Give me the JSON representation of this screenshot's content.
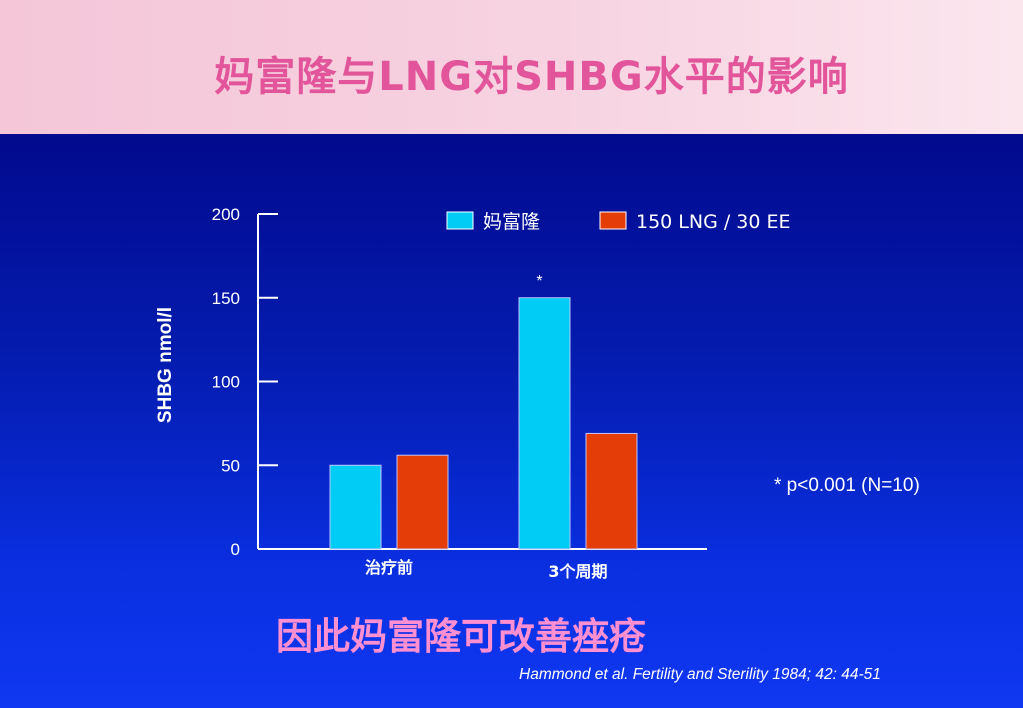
{
  "header": {
    "title": "妈富隆与LNG对SHBG水平的影响"
  },
  "chart_data": {
    "type": "bar",
    "ylabel": "SHBG nmol/l",
    "ylim": [
      0,
      200
    ],
    "yticks": [
      "0",
      "50",
      "100",
      "150",
      "200"
    ],
    "categories": [
      "治疗前",
      "3个周期"
    ],
    "series": [
      {
        "name": "妈富隆",
        "color": "#00ccf5",
        "values": [
          50,
          150
        ]
      },
      {
        "name": "150 LNG / 30  EE",
        "color": "#e53d07",
        "values": [
          56,
          69
        ]
      }
    ],
    "annotations": [
      {
        "text": "*",
        "category": "3个周期",
        "series": "妈富隆"
      }
    ],
    "legend": "top-right",
    "grid": false
  },
  "note": "* p<0.001  (N=10)",
  "conclusion": "因此妈富隆可改善痤疮",
  "citation": "Hammond et al. Fertility and Sterility 1984; 42: 44-51"
}
